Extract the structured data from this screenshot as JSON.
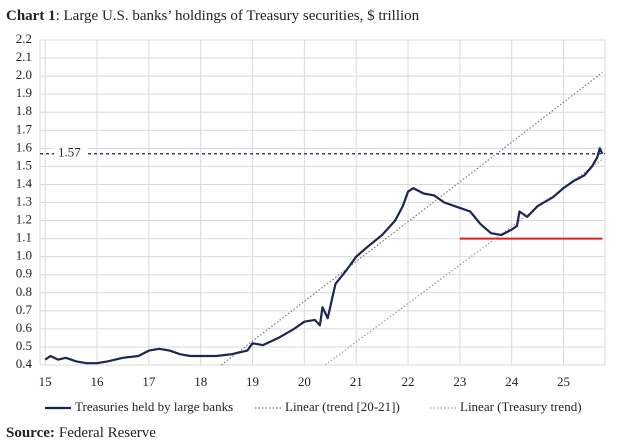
{
  "chart_data": {
    "type": "line",
    "title_prefix": "Chart 1",
    "title": ": Large U.S. banks’ holdings of Treasury securities, $ trillion",
    "source_label": "Source:",
    "source": "Federal Reserve",
    "xlim": [
      14.9,
      25.8
    ],
    "xticks": [
      15,
      16,
      17,
      18,
      19,
      20,
      21,
      22,
      23,
      24,
      25
    ],
    "ylim": [
      0.4,
      2.2
    ],
    "yticks": [
      0.4,
      0.5,
      0.6,
      0.7,
      0.8,
      0.9,
      {
        "value": 1.0,
        "label": "1.0"
      },
      1.1,
      1.2,
      1.3,
      1.4,
      1.5,
      1.6,
      1.7,
      1.8,
      1.9,
      {
        "value": 2.0,
        "label": "2.0"
      },
      2.1,
      2.2
    ],
    "grid": true,
    "legend": "bottom",
    "series": [
      {
        "name": "Treasuries held by large banks",
        "color": "#1c2554",
        "style": "solid",
        "x": [
          15.0,
          15.1,
          15.25,
          15.4,
          15.6,
          15.8,
          16.0,
          16.2,
          16.5,
          16.8,
          17.0,
          17.2,
          17.4,
          17.6,
          17.8,
          18.0,
          18.3,
          18.6,
          18.9,
          19.0,
          19.2,
          19.5,
          19.8,
          20.0,
          20.2,
          20.3,
          20.35,
          20.45,
          20.6,
          20.8,
          21.0,
          21.2,
          21.5,
          21.75,
          21.9,
          22.0,
          22.1,
          22.3,
          22.5,
          22.7,
          23.0,
          23.2,
          23.4,
          23.6,
          23.8,
          24.0,
          24.1,
          24.15,
          24.3,
          24.5,
          24.8,
          25.0,
          25.2,
          25.4,
          25.55,
          25.65,
          25.7,
          25.75
        ],
        "values": [
          0.43,
          0.45,
          0.43,
          0.44,
          0.42,
          0.41,
          0.41,
          0.42,
          0.44,
          0.45,
          0.48,
          0.49,
          0.48,
          0.46,
          0.45,
          0.45,
          0.45,
          0.46,
          0.48,
          0.52,
          0.51,
          0.55,
          0.6,
          0.64,
          0.65,
          0.62,
          0.72,
          0.66,
          0.85,
          0.92,
          1.0,
          1.05,
          1.12,
          1.2,
          1.28,
          1.36,
          1.38,
          1.35,
          1.34,
          1.3,
          1.27,
          1.25,
          1.18,
          1.13,
          1.12,
          1.15,
          1.17,
          1.25,
          1.22,
          1.28,
          1.33,
          1.38,
          1.42,
          1.45,
          1.5,
          1.55,
          1.6,
          1.57
        ]
      },
      {
        "name": "Linear (trend [20-21])",
        "color": "#7a7a7a",
        "style": "dotted",
        "x": [
          18.4,
          25.75
        ],
        "values": [
          0.4,
          2.02
        ]
      },
      {
        "name": "Linear (Treasury trend)",
        "color": "#9a9a9a",
        "style": "dotted",
        "x": [
          20.4,
          25.75
        ],
        "values": [
          0.4,
          1.54
        ]
      }
    ],
    "hlines": [
      {
        "value": 1.57,
        "color": "#1c2554",
        "style": "dashed",
        "labeled": true
      },
      {
        "value": 1.1,
        "color": "#e02020",
        "style": "solid",
        "x": [
          23,
          25.75
        ]
      }
    ]
  }
}
